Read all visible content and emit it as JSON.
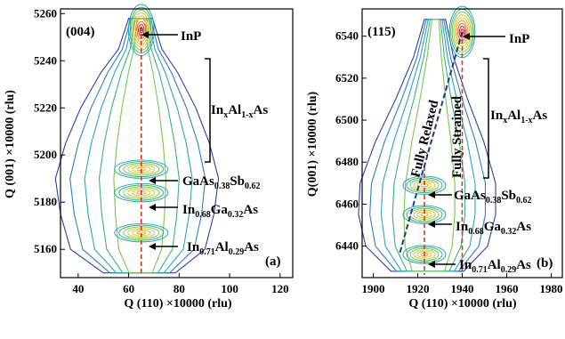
{
  "chart_data": [
    {
      "type": "contour",
      "panel_label": "(004)",
      "panel_letter": "(a)",
      "xlabel": "Q (110) ×10000 (rlu)",
      "ylabel": "Q (001) ×10000 (rlu)",
      "xlim": [
        33,
        125
      ],
      "ylim": [
        5148,
        5262
      ],
      "xticks": [
        40,
        60,
        80,
        100,
        120
      ],
      "yticks": [
        5160,
        5180,
        5200,
        5220,
        5240,
        5260
      ],
      "reference_line_x": 65,
      "peaks": [
        {
          "label": "InP",
          "x": 65,
          "y": 5253
        },
        {
          "label": "GaAs0.38Sb0.62",
          "x": 65,
          "y": 5194
        },
        {
          "label": "In0.68Ga0.32As",
          "x": 65,
          "y": 5184
        },
        {
          "label": "In0.71Al0.29As",
          "x": 65,
          "y": 5167
        }
      ],
      "bracket": {
        "label": "InxAl1-xAs",
        "y_range": [
          5202,
          5245
        ]
      }
    },
    {
      "type": "contour",
      "panel_label": "(115)",
      "panel_letter": "(b)",
      "xlabel": "Q (110) ×10000 (rlu)",
      "ylabel": "Q(001) ×10000 (rlu)",
      "xlim": [
        1895,
        1985
      ],
      "ylim": [
        6425,
        6553
      ],
      "xticks": [
        1900,
        1920,
        1940,
        1960,
        1980
      ],
      "yticks": [
        6440,
        6460,
        6480,
        6500,
        6520,
        6540
      ],
      "reference_lines_x": [
        1923,
        1940
      ],
      "lines": [
        {
          "label": "Fully Relaxed",
          "from": [
            1912,
            6437
          ],
          "to": [
            1940,
            6542
          ]
        },
        {
          "label": "Fully Strained",
          "x": 1940
        }
      ],
      "peaks": [
        {
          "label": "InP",
          "x": 1940,
          "y": 6542
        },
        {
          "label": "GaAs0.38Sb0.62",
          "x": 1923,
          "y": 6469
        },
        {
          "label": "In0.68Ga0.32As",
          "x": 1923,
          "y": 6455
        },
        {
          "label": "In0.71Al0.29As",
          "x": 1923,
          "y": 6436
        }
      ],
      "bracket": {
        "label": "InxAl1-xAs",
        "y_range": [
          6477,
          6528
        ]
      }
    }
  ],
  "labels": {
    "a": {
      "panel": "(004)",
      "letter": "(a)",
      "xlabel": "Q (110) ×10000 (rlu)",
      "ylabel": "Q (001) ×10000 (rlu)",
      "inp": "InP",
      "b_main": "In",
      "b_sub1": "x",
      "b_mid": "Al",
      "b_sub2": "1-x",
      "b_end": "As",
      "g_main": "GaAs",
      "g_sub1": "0.38",
      "g_mid": "Sb",
      "g_sub2": "0.62",
      "ig_main": "In",
      "ig_sub1": "0.68",
      "ig_mid": "Ga",
      "ig_sub2": "0.32",
      "ig_end": "As",
      "ia_main": "In",
      "ia_sub1": "0.71",
      "ia_mid": "Al",
      "ia_sub2": "0.29",
      "ia_end": "As"
    },
    "b": {
      "panel": "(115)",
      "letter": "(b)",
      "xlabel": "Q (110) ×10000 (rlu)",
      "ylabel": "Q(001) ×10000 (rlu)",
      "inp": "InP",
      "relaxed": "Fully Relaxed",
      "strained": "Fully Strained",
      "b_main": "In",
      "b_sub1": "x",
      "b_mid": "Al",
      "b_sub2": "1-x",
      "b_end": "As",
      "g_main": "GaAs",
      "g_sub1": "0.38",
      "g_mid": "Sb",
      "g_sub2": "0.62",
      "ig_main": "In",
      "ig_sub1": "0.68",
      "ig_mid": "Ga",
      "ig_sub2": "0.32",
      "ig_end": "As",
      "ia_main": "In",
      "ia_sub1": "0.71",
      "ia_mid": "Al",
      "ia_sub2": "0.29",
      "ia_end": "As"
    }
  }
}
